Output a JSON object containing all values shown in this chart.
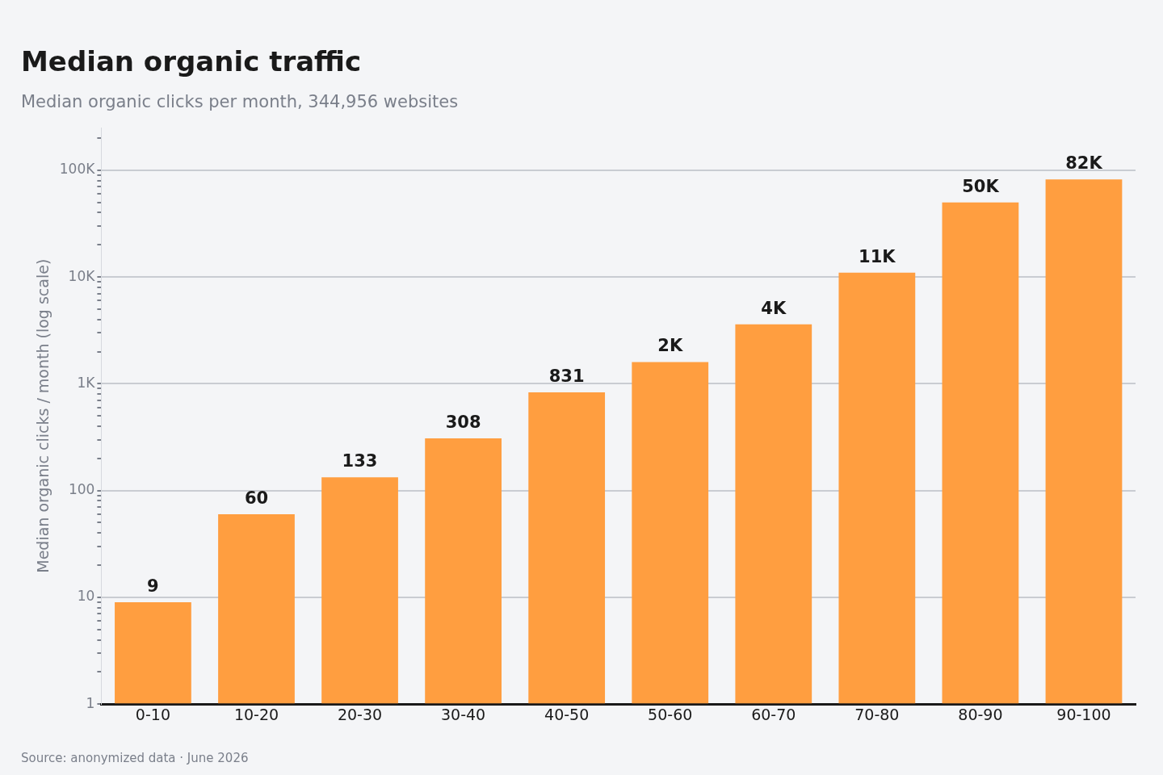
{
  "chart_data": {
    "type": "bar",
    "title": "Median organic traffic",
    "subtitle": "Median organic clicks per month, 344,956 websites",
    "ylabel": "Median organic clicks / month (log scale)",
    "categories": [
      "0-10",
      "10-20",
      "20-30",
      "30-40",
      "40-50",
      "50-60",
      "60-70",
      "70-80",
      "80-90",
      "90-100"
    ],
    "values": [
      9,
      60,
      133,
      308,
      831,
      1600,
      3600,
      11000,
      50000,
      82000
    ],
    "value_labels": [
      "9",
      "60",
      "133",
      "308",
      "831",
      "2K",
      "4K",
      "11K",
      "50K",
      "82K"
    ],
    "color": "#ff9e40",
    "log": "y",
    "ylim": [
      1,
      250000
    ],
    "yticks": [
      {
        "value": 1,
        "label": "1"
      },
      {
        "value": 2,
        "label": null
      },
      {
        "value": 3,
        "label": null
      },
      {
        "value": 4,
        "label": null
      },
      {
        "value": 5,
        "label": null
      },
      {
        "value": 6,
        "label": null
      },
      {
        "value": 7,
        "label": null
      },
      {
        "value": 8,
        "label": null
      },
      {
        "value": 9,
        "label": null
      },
      {
        "value": 10,
        "label": "10"
      },
      {
        "value": 20,
        "label": null
      },
      {
        "value": 30,
        "label": null
      },
      {
        "value": 40,
        "label": null
      },
      {
        "value": 50,
        "label": null
      },
      {
        "value": 60,
        "label": null
      },
      {
        "value": 70,
        "label": null
      },
      {
        "value": 80,
        "label": null
      },
      {
        "value": 90,
        "label": null
      },
      {
        "value": 100,
        "label": "100"
      },
      {
        "value": 200,
        "label": null
      },
      {
        "value": 300,
        "label": null
      },
      {
        "value": 400,
        "label": null
      },
      {
        "value": 500,
        "label": null
      },
      {
        "value": 600,
        "label": null
      },
      {
        "value": 700,
        "label": null
      },
      {
        "value": 800,
        "label": null
      },
      {
        "value": 900,
        "label": null
      },
      {
        "value": 1000,
        "label": "1K"
      },
      {
        "value": 2000,
        "label": null
      },
      {
        "value": 3000,
        "label": null
      },
      {
        "value": 4000,
        "label": null
      },
      {
        "value": 5000,
        "label": null
      },
      {
        "value": 6000,
        "label": null
      },
      {
        "value": 7000,
        "label": null
      },
      {
        "value": 8000,
        "label": null
      },
      {
        "value": 9000,
        "label": null
      },
      {
        "value": 10000,
        "label": "10K"
      },
      {
        "value": 20000,
        "label": null
      },
      {
        "value": 30000,
        "label": null
      },
      {
        "value": 40000,
        "label": null
      },
      {
        "value": 50000,
        "label": null
      },
      {
        "value": 60000,
        "label": null
      },
      {
        "value": 70000,
        "label": null
      },
      {
        "value": 80000,
        "label": null
      },
      {
        "value": 90000,
        "label": null
      },
      {
        "value": 100000,
        "label": "100K"
      },
      {
        "value": 200000,
        "label": null
      }
    ],
    "grid": "y",
    "legend": false,
    "annotations": [
      "Source: anonymized data · June 2026"
    ]
  }
}
